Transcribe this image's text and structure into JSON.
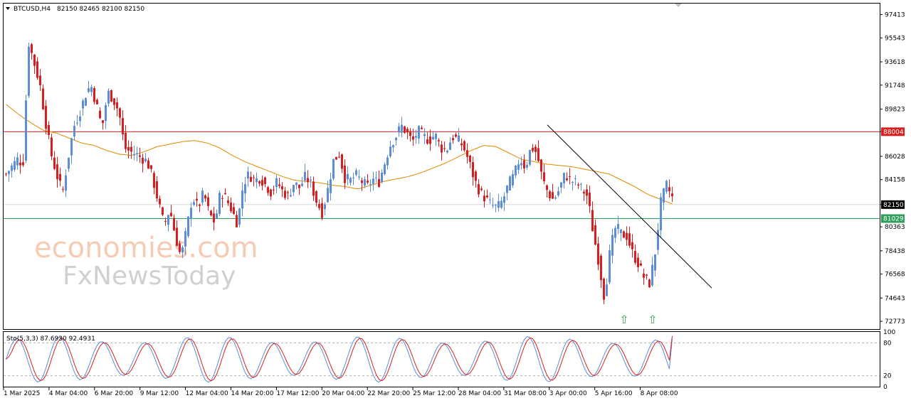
{
  "header": {
    "symbol": "BTCUSD,H4",
    "ohlc": "82150 82465 82100 82150"
  },
  "watermark": {
    "line1": "economies.com",
    "line2": "FxNewsToday"
  },
  "colors": {
    "bull": "#5b8dd9",
    "bear": "#d81e1e",
    "ma": "#e08a00",
    "resistance": "#d81e1e",
    "support": "#2e9e5a",
    "trendline": "#000000",
    "stoch_k": "#5b8dd9",
    "stoch_d": "#d81e1e",
    "arrow": "#3aa55c",
    "price_tag_bg": "#000000"
  },
  "chart_data": [
    {
      "type": "candlestick",
      "title": "BTCUSD,H4",
      "price_ticks": [
        "97413",
        "95543",
        "93618",
        "91748",
        "89823",
        "88004",
        "86028",
        "84158",
        "82150",
        "80363",
        "78438",
        "76568",
        "74643",
        "72773"
      ],
      "x_ticks": [
        "1 Mar 2025",
        "4 Mar 04:00",
        "6 Mar 20:00",
        "9 Mar 12:00",
        "12 Mar 04:00",
        "14 Mar 20:00",
        "17 Mar 12:00",
        "20 Mar 04:00",
        "22 Mar 20:00",
        "25 Mar 12:00",
        "28 Mar 04:00",
        "31 Mar 08:00",
        "3 Apr 00:00",
        "5 Apr 16:00",
        "8 Apr 08:00"
      ],
      "ylim": [
        72150,
        98300
      ],
      "horizontal_levels": [
        {
          "price": 88004,
          "label": "88004",
          "color": "resistance"
        },
        {
          "price": 81029,
          "label": "81029",
          "color": "support"
        },
        {
          "price": 82150,
          "label": "82150",
          "color": "current"
        }
      ],
      "trendline": {
        "start": {
          "candle": 0.0,
          "price": 88550
        },
        "end": {
          "candle": 1.0,
          "price": 75450
        }
      },
      "markers": [
        {
          "type": "up-arrow",
          "label": "⇧",
          "position": "below low near 5 Apr 16:00"
        },
        {
          "type": "up-arrow",
          "label": "⇧",
          "position": "below low near 8 Apr 08:00"
        }
      ],
      "close_path": [
        84600,
        85200,
        85800,
        85400,
        95200,
        93500,
        91800,
        88800,
        86200,
        84500,
        83100,
        85900,
        88400,
        89500,
        90900,
        91800,
        90200,
        88300,
        91200,
        90600,
        89600,
        86700,
        86400,
        86200,
        85900,
        85600,
        84200,
        82300,
        80500,
        81800,
        79600,
        77900,
        80200,
        82800,
        81900,
        83100,
        81400,
        80700,
        83200,
        82600,
        81700,
        80600,
        83800,
        84600,
        84100,
        84300,
        83700,
        83100,
        84000,
        83200,
        82800,
        83900,
        83500,
        84400,
        83800,
        82400,
        81500,
        83400,
        85700,
        86200,
        84300,
        84100,
        84500,
        84000,
        83600,
        84200,
        83900,
        85400,
        86900,
        87600,
        88500,
        87900,
        87200,
        88100,
        87600,
        87300,
        87800,
        86700,
        86500,
        87600,
        87400,
        86800,
        85600,
        84100,
        83100,
        82600,
        82100,
        81900,
        82500,
        83800,
        84500,
        85900,
        85100,
        86800,
        86300,
        84200,
        83100,
        82500,
        83400,
        84600,
        84100,
        83900,
        83400,
        82800,
        79900,
        77500,
        74600,
        78500,
        80400,
        79800,
        79600,
        78200,
        77400,
        76300,
        75800,
        78400,
        82400,
        83700,
        82700
      ],
      "ma_path": [
        90200,
        89400,
        88700,
        88100,
        87900,
        87500,
        87100,
        86900,
        86500,
        86200,
        86100,
        86400,
        86800,
        87000,
        87200,
        87300,
        87100,
        86700,
        86100,
        85600,
        85200,
        84800,
        84400,
        84100,
        84000,
        83900,
        83700,
        83600,
        83400,
        83700,
        84000,
        84200,
        84400,
        84700,
        85100,
        85500,
        86000,
        86500,
        86900,
        86800,
        86300,
        85800,
        85600,
        85400,
        85300,
        85200,
        85000,
        84800,
        84600,
        84100,
        83600,
        83000,
        82600,
        82200
      ],
      "stochastic": {
        "label": "Sto(5,3,3) 87.6930 92.4931",
        "levels": [
          "100",
          "80",
          "20",
          "0"
        ],
        "k_value": 87.693,
        "d_value": 92.4931
      }
    }
  ]
}
